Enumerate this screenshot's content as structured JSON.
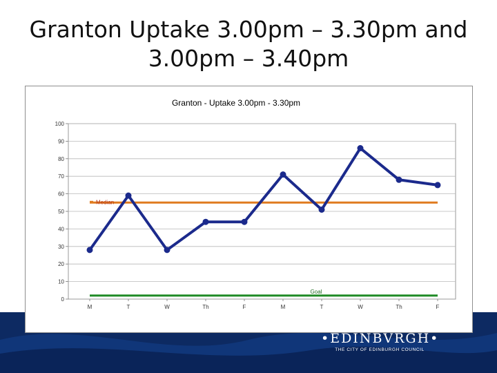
{
  "slide": {
    "title_line1": "Granton Uptake 3.00pm – 3.30pm and",
    "title_line2": "3.00pm – 3.40pm"
  },
  "chart_data": {
    "type": "line",
    "title": "Granton - Uptake 3.00pm - 3.30pm",
    "categories": [
      "M",
      "T",
      "W",
      "Th",
      "F",
      "M",
      "T",
      "W",
      "Th",
      "F"
    ],
    "series": [
      {
        "name": "",
        "values": [
          28,
          59,
          28,
          44,
          44,
          71,
          51,
          86,
          68,
          65
        ],
        "color": "#1b2a8c"
      }
    ],
    "reference_lines": [
      {
        "label": "Median",
        "value": 55,
        "color": "#e07b1f"
      },
      {
        "label": "Goal",
        "value": 2,
        "color": "#1e8a24"
      }
    ],
    "yticks": [
      "0",
      "10",
      "20",
      "30",
      "40",
      "50",
      "60",
      "70",
      "80",
      "90",
      "100"
    ],
    "ylim": [
      0,
      100
    ],
    "grid": true,
    "xlabel": "",
    "ylabel": ""
  },
  "logo": {
    "main": "•EDINBVRGH•",
    "sub": "THE CITY OF EDINBURGH COUNCIL"
  }
}
